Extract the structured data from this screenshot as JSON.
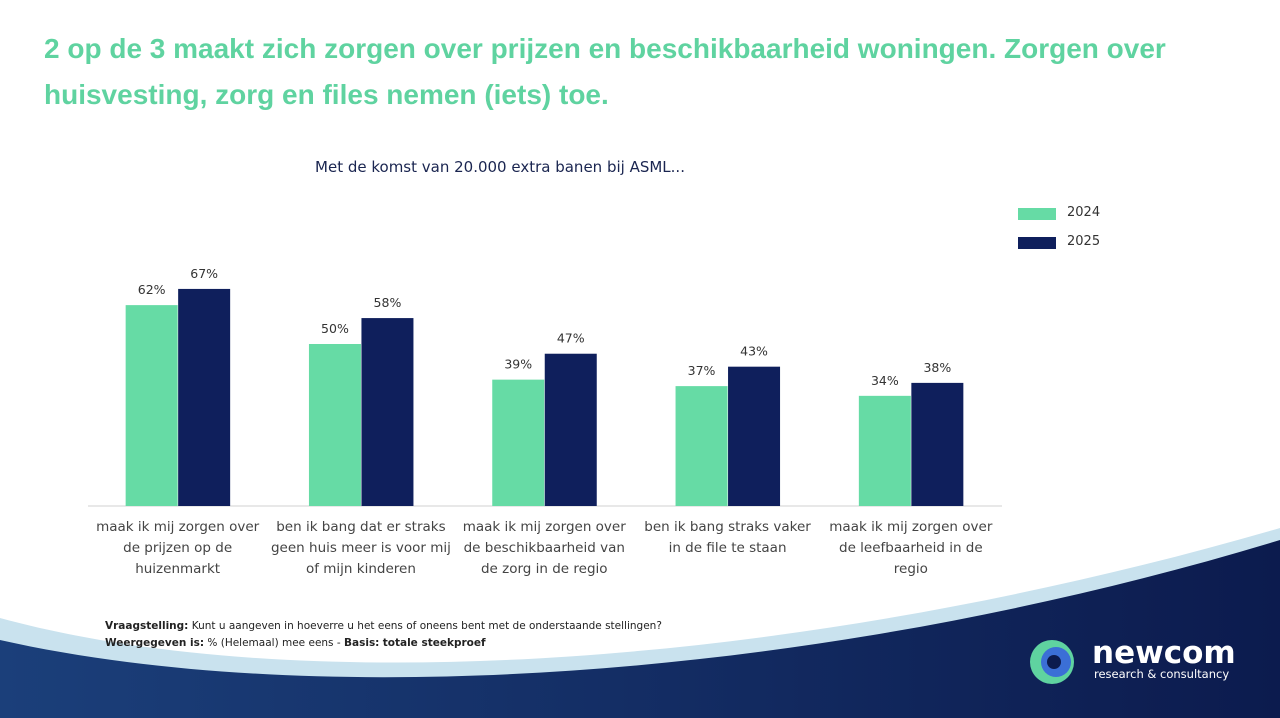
{
  "title": "2 op de 3 maakt zich zorgen over prijzen en beschikbaarheid woningen. Zorgen over huisvesting, zorg en files nemen (iets) toe.",
  "chart_data": {
    "type": "bar",
    "title": "Met de komst van 20.000 extra banen bij ASML...",
    "categories": [
      "maak ik mij zorgen over de prijzen op de huizenmarkt",
      "ben ik bang dat er straks geen huis meer is voor mij of mijn kinderen",
      "maak ik mij zorgen over de beschikbaarheid van de zorg in de regio",
      "ben ik bang straks vaker in de file te staan",
      "maak ik mij zorgen over de leefbaarheid in de regio"
    ],
    "series": [
      {
        "name": "2024",
        "color": "#66dba5",
        "values": [
          62,
          50,
          39,
          37,
          34
        ],
        "value_labels": [
          "62%",
          "50%",
          "39%",
          "37%",
          "34%"
        ]
      },
      {
        "name": "2025",
        "color": "#0f1f5c",
        "values": [
          67,
          58,
          47,
          43,
          38
        ],
        "value_labels": [
          "67%",
          "58%",
          "47%",
          "43%",
          "38%"
        ]
      }
    ],
    "legend": "top-right"
  },
  "footer": {
    "question_label": "Vraagstelling:",
    "question": "Kunt u aangeven in hoeverre u het eens of oneens bent met de onderstaande stellingen?",
    "shown_label": "Weergegeven is:",
    "shown": "% (Helemaal) mee eens  -",
    "basis_label": "Basis:",
    "basis": "totale steekproef"
  },
  "logo": {
    "name": "newcom",
    "tagline": "research & consultancy"
  }
}
